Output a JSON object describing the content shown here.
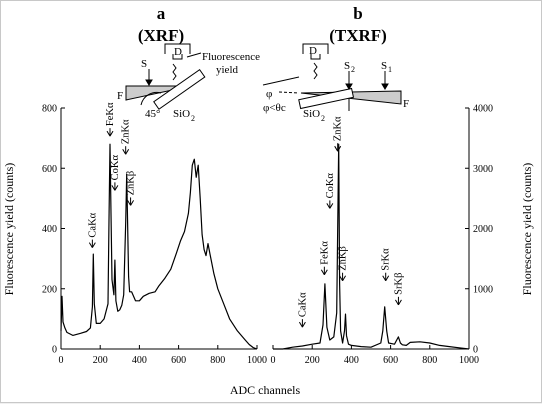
{
  "figure": {
    "panel_a": {
      "letter": "a",
      "title": "(XRF)"
    },
    "panel_b": {
      "letter": "b",
      "title": "(TXRF)"
    }
  },
  "schematic_a": {
    "fluorescence_label_line1": "Fluorescence",
    "fluorescence_label_line2": "yield",
    "S": "S",
    "D": "D",
    "F": "F",
    "angle": "45°",
    "sample": "SiO",
    "sample_sub": "2"
  },
  "schematic_b": {
    "D": "D",
    "S2": "S",
    "S2_sub": "2",
    "S1": "S",
    "S1_sub": "1",
    "F": "F",
    "phi": "φ",
    "phi_cond": "φ<θc",
    "sample": "SiO",
    "sample_sub": "2"
  },
  "chart_data": [
    {
      "type": "line",
      "panel": "a",
      "title": "(XRF)",
      "xlabel": "ADC channels",
      "ylabel": "Fluorescence yield (counts)",
      "xlim": [
        0,
        1000
      ],
      "ylim": [
        0,
        800
      ],
      "xticks": [
        0,
        200,
        400,
        600,
        800,
        1000
      ],
      "yticks": [
        0,
        200,
        400,
        600,
        800
      ],
      "x": [
        0,
        5,
        10,
        20,
        30,
        60,
        100,
        130,
        150,
        160,
        165,
        170,
        180,
        200,
        220,
        240,
        245,
        250,
        255,
        260,
        270,
        275,
        280,
        290,
        300,
        310,
        320,
        330,
        335,
        340,
        345,
        350,
        360,
        380,
        400,
        420,
        450,
        480,
        500,
        530,
        560,
        590,
        610,
        630,
        650,
        660,
        670,
        680,
        690,
        700,
        710,
        720,
        730,
        740,
        750,
        760,
        780,
        800,
        830,
        860,
        900,
        940,
        960,
        980,
        1000
      ],
      "y": [
        60,
        175,
        90,
        70,
        55,
        45,
        52,
        58,
        70,
        140,
        315,
        150,
        85,
        85,
        100,
        150,
        430,
        680,
        450,
        230,
        180,
        295,
        160,
        125,
        130,
        145,
        180,
        420,
        580,
        420,
        240,
        190,
        190,
        160,
        160,
        175,
        185,
        190,
        210,
        235,
        265,
        320,
        360,
        390,
        450,
        520,
        610,
        630,
        570,
        610,
        500,
        380,
        330,
        310,
        350,
        315,
        250,
        200,
        150,
        100,
        60,
        30,
        15,
        5,
        0
      ],
      "annotations": [
        {
          "text": "CaKα",
          "x": 160,
          "y": 330
        },
        {
          "text": "FeKα",
          "x": 250,
          "y": 700
        },
        {
          "text": "CoKα",
          "x": 275,
          "y": 520
        },
        {
          "text": "ZnKα",
          "x": 330,
          "y": 640
        },
        {
          "text": "ZnKβ",
          "x": 355,
          "y": 470
        }
      ]
    },
    {
      "type": "line",
      "panel": "b",
      "title": "(TXRF)",
      "xlabel": "ADC channels",
      "ylabel": "Fluorescence yield (counts)",
      "xlim": [
        0,
        1000
      ],
      "ylim": [
        0,
        4000
      ],
      "xticks": [
        0,
        200,
        400,
        600,
        800,
        1000
      ],
      "yticks": [
        0,
        1000,
        2000,
        3000,
        4000
      ],
      "x": [
        0,
        50,
        100,
        150,
        200,
        240,
        255,
        265,
        275,
        290,
        310,
        325,
        335,
        340,
        345,
        355,
        365,
        370,
        375,
        385,
        400,
        450,
        500,
        550,
        560,
        570,
        580,
        590,
        620,
        640,
        650,
        660,
        680,
        700,
        750,
        800,
        850,
        900,
        950,
        1000
      ],
      "y": [
        0,
        0,
        30,
        50,
        80,
        100,
        400,
        1080,
        360,
        150,
        200,
        600,
        3400,
        1100,
        300,
        100,
        300,
        580,
        220,
        80,
        60,
        40,
        30,
        100,
        300,
        700,
        300,
        100,
        80,
        200,
        100,
        70,
        60,
        110,
        120,
        100,
        60,
        40,
        20,
        0
      ],
      "annotations": [
        {
          "text": "CaKα",
          "x": 150,
          "y": 330
        },
        {
          "text": "FeKα",
          "x": 262,
          "y": 1200
        },
        {
          "text": "CoKα",
          "x": 290,
          "y": 2300
        },
        {
          "text": "ZnKα",
          "x": 330,
          "y": 3250
        },
        {
          "text": "ZnKβ",
          "x": 355,
          "y": 1100
        },
        {
          "text": "SrKα",
          "x": 575,
          "y": 1100
        },
        {
          "text": "SrKβ",
          "x": 640,
          "y": 700
        }
      ]
    }
  ],
  "colors": {
    "line": "#000000",
    "background": "#ffffff",
    "frame": "#f0f0f0"
  }
}
